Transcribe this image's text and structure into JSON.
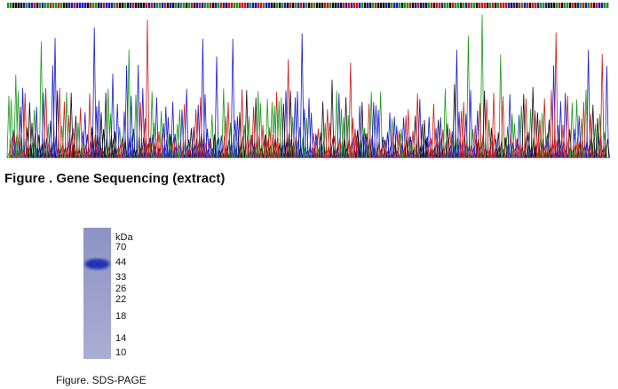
{
  "figure_sequencing": {
    "caption": "Figure . Gene Sequencing (extract)"
  },
  "figure_sds_page": {
    "unit": "kDa",
    "markers": [
      70,
      44,
      33,
      26,
      22,
      18,
      14,
      10
    ],
    "caption": "Figure. SDS-PAGE"
  }
}
